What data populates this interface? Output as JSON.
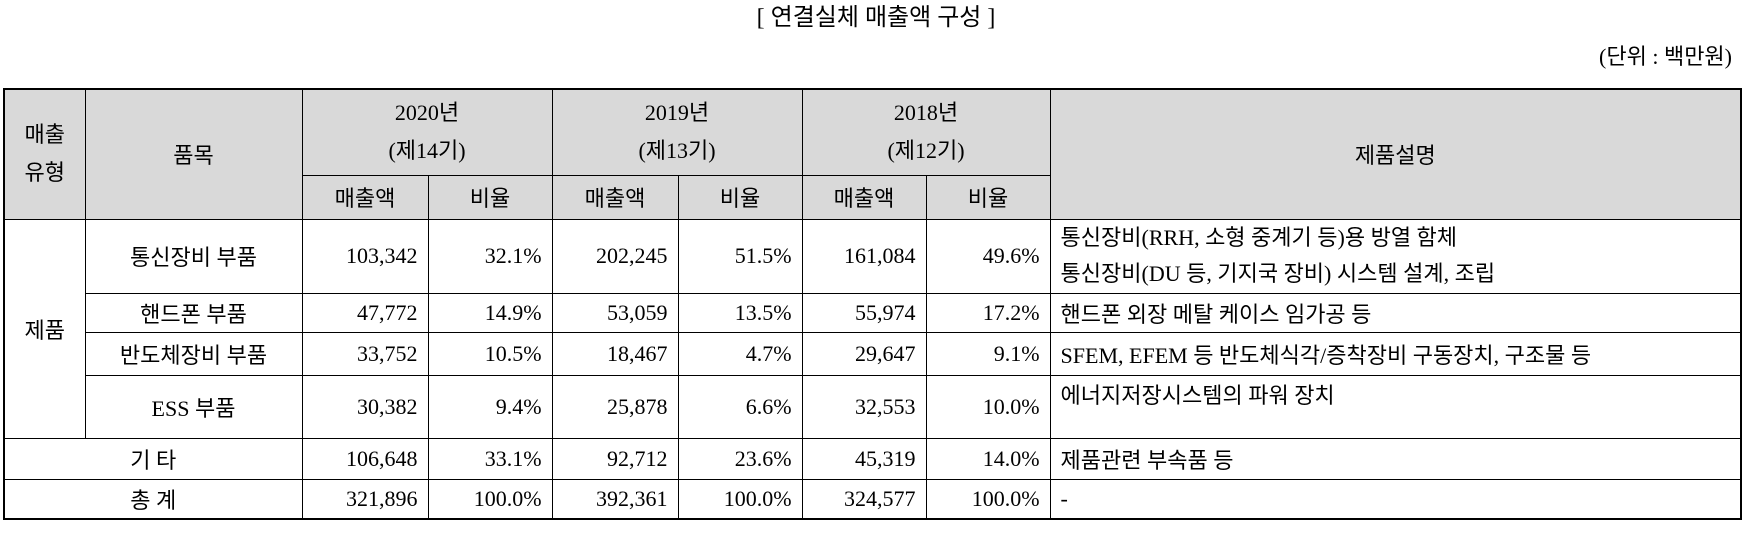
{
  "title": "[ 연결실체 매출액 구성 ]",
  "unit": "(단위 : 백만원)",
  "header": {
    "type_col": [
      "매출",
      "유형"
    ],
    "item_col": "품목",
    "years": [
      {
        "year": "2020년",
        "period": "(제14기)"
      },
      {
        "year": "2019년",
        "period": "(제13기)"
      },
      {
        "year": "2018년",
        "period": "(제12기)"
      }
    ],
    "sales": "매출액",
    "ratio": "비율",
    "desc_col": "제품설명"
  },
  "group": "제품",
  "rows": [
    {
      "item": "통신장비 부품",
      "values": [
        {
          "sales": "103,342",
          "ratio": "32.1%"
        },
        {
          "sales": "202,245",
          "ratio": "51.5%"
        },
        {
          "sales": "161,084",
          "ratio": "49.6%"
        }
      ],
      "desc": [
        "통신장비(RRH, 소형 중계기 등)용 방열 함체",
        "통신장비(DU 등, 기지국 장비) 시스템 설계, 조립"
      ]
    },
    {
      "item": "핸드폰 부품",
      "values": [
        {
          "sales": "47,772",
          "ratio": "14.9%"
        },
        {
          "sales": "53,059",
          "ratio": "13.5%"
        },
        {
          "sales": "55,974",
          "ratio": "17.2%"
        }
      ],
      "desc": [
        "핸드폰 외장 메탈 케이스 임가공 등"
      ]
    },
    {
      "item": "반도체장비 부품",
      "values": [
        {
          "sales": "33,752",
          "ratio": "10.5%"
        },
        {
          "sales": "18,467",
          "ratio": "4.7%"
        },
        {
          "sales": "29,647",
          "ratio": "9.1%"
        }
      ],
      "desc": [
        "SFEM, EFEM 등 반도체식각/증착장비 구동장치, 구조물 등"
      ]
    },
    {
      "item": "ESS 부품",
      "values": [
        {
          "sales": "30,382",
          "ratio": "9.4%"
        },
        {
          "sales": "25,878",
          "ratio": "6.6%"
        },
        {
          "sales": "32,553",
          "ratio": "10.0%"
        }
      ],
      "desc": [
        "에너지저장시스템의 파워 장치"
      ]
    }
  ],
  "other": {
    "label": "기 타",
    "values": [
      {
        "sales": "106,648",
        "ratio": "33.1%"
      },
      {
        "sales": "92,712",
        "ratio": "23.6%"
      },
      {
        "sales": "45,319",
        "ratio": "14.0%"
      }
    ],
    "desc": "제품관련 부속품 등"
  },
  "total": {
    "label": "총 계",
    "values": [
      {
        "sales": "321,896",
        "ratio": "100.0%"
      },
      {
        "sales": "392,361",
        "ratio": "100.0%"
      },
      {
        "sales": "324,577",
        "ratio": "100.0%"
      }
    ],
    "desc": "-"
  }
}
